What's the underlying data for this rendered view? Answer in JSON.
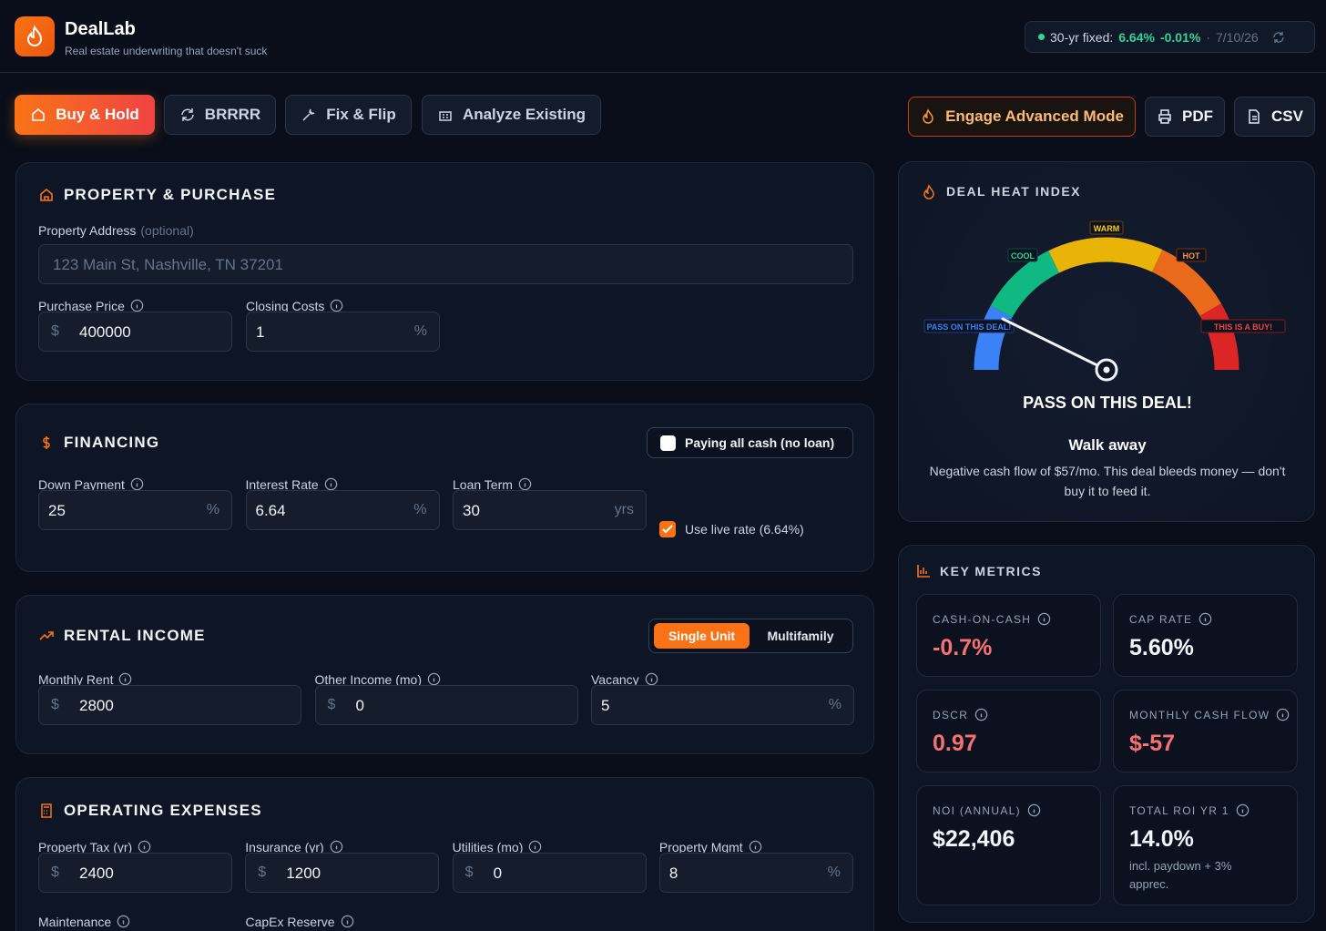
{
  "header": {
    "title": "DealLab",
    "subtitle": "Real estate underwriting that doesn't suck",
    "rate": {
      "label": "30-yr fixed:",
      "value": "6.64%",
      "change": "-0.01%",
      "date": "7/10/26"
    }
  },
  "tabs": [
    "Buy & Hold",
    "BRRRR",
    "Fix & Flip",
    "Analyze Existing"
  ],
  "actions": [
    "Engage Advanced Mode",
    "PDF",
    "CSV"
  ],
  "property": {
    "title": "PROPERTY & PURCHASE",
    "address": {
      "label": "Property Address",
      "note": "(optional)",
      "placeholder": "123 Main St, Nashville, TN 37201"
    },
    "fields": [
      {
        "label": "Purchase Price",
        "prefix": "$",
        "value": 400000
      },
      {
        "label": "Closing Costs",
        "value": 1,
        "suffix": "%"
      }
    ]
  },
  "financing": {
    "title": "FINANCING",
    "cash_toggle": "Paying all cash (no loan)",
    "fields": [
      {
        "label": "Down Payment",
        "value": 25,
        "suffix": "%"
      },
      {
        "label": "Interest Rate",
        "value": 6.64,
        "suffix": "%"
      },
      {
        "label": "Loan Term",
        "value": 30,
        "suffix": "yrs"
      }
    ],
    "live_rate": "Use live rate (6.64%)"
  },
  "rental": {
    "title": "RENTAL INCOME",
    "modes": [
      "Single Unit",
      "Multifamily"
    ],
    "fields": [
      {
        "label": "Monthly Rent",
        "prefix": "$",
        "value": 2800
      },
      {
        "label": "Other Income (mo)",
        "prefix": "$",
        "value": 0
      },
      {
        "label": "Vacancy",
        "value": 5,
        "suffix": "%"
      }
    ]
  },
  "expenses": {
    "title": "OPERATING EXPENSES",
    "fields": [
      {
        "label": "Property Tax (yr)",
        "prefix": "$",
        "value": 2400
      },
      {
        "label": "Insurance (yr)",
        "prefix": "$",
        "value": 1200
      },
      {
        "label": "Utilities (mo)",
        "prefix": "$",
        "value": 0
      },
      {
        "label": "Property Mgmt",
        "value": 8,
        "suffix": "%"
      }
    ],
    "more_fields": [
      "Maintenance",
      "CapEx Reserve"
    ]
  },
  "heat": {
    "title": "DEAL HEAT INDEX",
    "gauge_labels": {
      "pass": "PASS ON THIS DEAL!",
      "cool": "COOL",
      "warm": "WARM",
      "hot": "HOT",
      "buy": "THIS IS A BUY!"
    },
    "verdict": "PASS ON THIS DEAL!",
    "headline": "Walk away",
    "description": "Negative cash flow of $57/mo. This deal bleeds money — don't buy it to feed it."
  },
  "metrics": {
    "title": "KEY METRICS",
    "items": [
      {
        "label": "CASH-ON-CASH",
        "value": "-0.7%",
        "color": "#f87171"
      },
      {
        "label": "CAP RATE",
        "value": "5.60%",
        "color": "#f1f5f9"
      },
      {
        "label": "DSCR",
        "value": "0.97",
        "color": "#f87171"
      },
      {
        "label": "MONTHLY CASH FLOW",
        "value": "$-57",
        "color": "#f87171"
      },
      {
        "label": "NOI (ANNUAL)",
        "value": "$22,406",
        "color": "#f1f5f9"
      },
      {
        "label": "TOTAL ROI YR 1",
        "value": "14.0%",
        "color": "#f1f5f9",
        "note": "incl. paydown + 3% apprec."
      }
    ]
  }
}
